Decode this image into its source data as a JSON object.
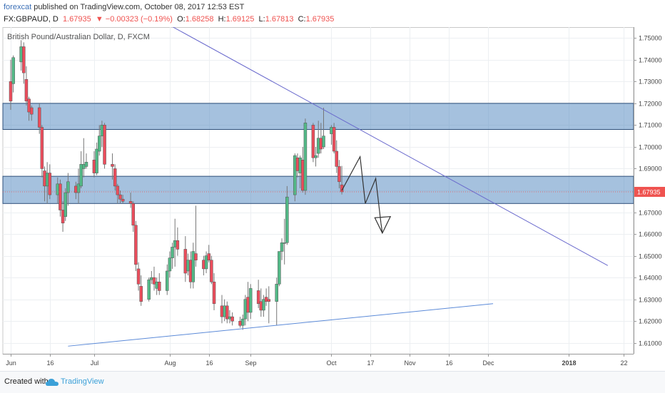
{
  "header": {
    "author": "forexcat",
    "published_text": " published on TradingView.com, October 08, 2017 12:53 EST",
    "symbol": "FX:GBPAUD, D",
    "last_price": "1.67935",
    "change_text": "−0.00323 (−0.19%)",
    "open_label": "O:",
    "open_value": "1.68258",
    "high_label": "H:",
    "high_value": "1.69125",
    "low_label": "L:",
    "low_value": "1.67813",
    "close_label": "C:",
    "close_value": "1.67935",
    "colors": {
      "up": "#26a69a",
      "down": "#ef5350",
      "value_text": "#ef5350"
    }
  },
  "footer": {
    "created_with": "Created with",
    "brand": "TradingView",
    "icon": "tradingview-cloud-icon"
  },
  "chart_data": {
    "type": "candlestick",
    "title": "British Pound/Australian Dollar, D, FXCM",
    "ylim": [
      1.605,
      1.755
    ],
    "y_ticks": [
      "1.75000",
      "1.74000",
      "1.73000",
      "1.72000",
      "1.71000",
      "1.70000",
      "1.69000",
      "1.68000",
      "1.67000",
      "1.66000",
      "1.65000",
      "1.64000",
      "1.63000",
      "1.62000",
      "1.61000"
    ],
    "x_ticks": [
      {
        "label": "Jun",
        "date": "2017-06-01"
      },
      {
        "label": "16",
        "date": "2017-06-16"
      },
      {
        "label": "Jul",
        "date": "2017-07-03"
      },
      {
        "label": "Aug",
        "date": "2017-08-01"
      },
      {
        "label": "16",
        "date": "2017-08-16"
      },
      {
        "label": "Sep",
        "date": "2017-09-01"
      },
      {
        "label": "Oct",
        "date": "2017-10-02"
      },
      {
        "label": "17",
        "date": "2017-10-17"
      },
      {
        "label": "Nov",
        "date": "2017-11-01"
      },
      {
        "label": "16",
        "date": "2017-11-16"
      },
      {
        "label": "Dec",
        "date": "2017-12-01"
      },
      {
        "label": "2018",
        "date": "2018-01-01"
      },
      {
        "label": "22",
        "date": "2018-01-22"
      }
    ],
    "last_price_label": "1.67935",
    "colors": {
      "up": "#53b987",
      "down": "#eb4d5c",
      "zone": "#5b8ec2",
      "trendline": "#6a6acd",
      "support": "#5b8ad8",
      "projection": "#333333"
    },
    "zones": [
      {
        "from": 1.708,
        "to": 1.72
      },
      {
        "from": 1.674,
        "to": 1.6865
      }
    ],
    "trendlines": [
      {
        "name": "resistance",
        "from": {
          "date": "2017-07-31",
          "y": 1.7565
        },
        "to": {
          "date": "2018-01-16",
          "y": 1.6455
        }
      },
      {
        "name": "support",
        "from": {
          "date": "2017-06-23",
          "y": 1.6085
        },
        "to": {
          "date": "2017-12-03",
          "y": 1.628
        }
      }
    ],
    "projection_path": [
      {
        "date": "2017-10-06",
        "y": 1.68
      },
      {
        "date": "2017-10-13",
        "y": 1.6955
      },
      {
        "date": "2017-10-15",
        "y": 1.674
      },
      {
        "date": "2017-10-19",
        "y": 1.6855
      },
      {
        "date": "2017-10-21",
        "y": 1.665
      }
    ],
    "candles": [
      {
        "date": "2017-06-01",
        "o": 1.73,
        "h": 1.74,
        "l": 1.717,
        "c": 1.721
      },
      {
        "date": "2017-06-02",
        "o": 1.729,
        "h": 1.742,
        "l": 1.725,
        "c": 1.741
      },
      {
        "date": "2017-06-05",
        "o": 1.739,
        "h": 1.749,
        "l": 1.735,
        "c": 1.746
      },
      {
        "date": "2017-06-06",
        "o": 1.746,
        "h": 1.748,
        "l": 1.729,
        "c": 1.734
      },
      {
        "date": "2017-06-07",
        "o": 1.731,
        "h": 1.737,
        "l": 1.719,
        "c": 1.721
      },
      {
        "date": "2017-06-08",
        "o": 1.722,
        "h": 1.723,
        "l": 1.712,
        "c": 1.716
      },
      {
        "date": "2017-06-09",
        "o": 1.718,
        "h": 1.719,
        "l": 1.712,
        "c": 1.715
      },
      {
        "date": "2017-06-12",
        "o": 1.718,
        "h": 1.72,
        "l": 1.706,
        "c": 1.709
      },
      {
        "date": "2017-06-13",
        "o": 1.709,
        "h": 1.71,
        "l": 1.686,
        "c": 1.69
      },
      {
        "date": "2017-06-14",
        "o": 1.689,
        "h": 1.691,
        "l": 1.675,
        "c": 1.682
      },
      {
        "date": "2017-06-15",
        "o": 1.682,
        "h": 1.693,
        "l": 1.674,
        "c": 1.688
      },
      {
        "date": "2017-06-16",
        "o": 1.688,
        "h": 1.692,
        "l": 1.676,
        "c": 1.678
      },
      {
        "date": "2017-06-19",
        "o": 1.678,
        "h": 1.686,
        "l": 1.674,
        "c": 1.683
      },
      {
        "date": "2017-06-20",
        "o": 1.683,
        "h": 1.685,
        "l": 1.668,
        "c": 1.671
      },
      {
        "date": "2017-06-21",
        "o": 1.671,
        "h": 1.675,
        "l": 1.661,
        "c": 1.665
      },
      {
        "date": "2017-06-22",
        "o": 1.668,
        "h": 1.681,
        "l": 1.666,
        "c": 1.679
      },
      {
        "date": "2017-06-23",
        "o": 1.679,
        "h": 1.688,
        "l": 1.673,
        "c": 1.684
      },
      {
        "date": "2017-06-26",
        "o": 1.682,
        "h": 1.684,
        "l": 1.676,
        "c": 1.679
      },
      {
        "date": "2017-06-27",
        "o": 1.679,
        "h": 1.69,
        "l": 1.674,
        "c": 1.683
      },
      {
        "date": "2017-06-28",
        "o": 1.682,
        "h": 1.698,
        "l": 1.681,
        "c": 1.692
      },
      {
        "date": "2017-06-29",
        "o": 1.69,
        "h": 1.704,
        "l": 1.686,
        "c": 1.692
      },
      {
        "date": "2017-06-30",
        "o": 1.691,
        "h": 1.697,
        "l": 1.69,
        "c": 1.693
      },
      {
        "date": "2017-07-03",
        "o": 1.694,
        "h": 1.698,
        "l": 1.686,
        "c": 1.688
      },
      {
        "date": "2017-07-04",
        "o": 1.688,
        "h": 1.702,
        "l": 1.687,
        "c": 1.699
      },
      {
        "date": "2017-07-05",
        "o": 1.698,
        "h": 1.71,
        "l": 1.696,
        "c": 1.705
      },
      {
        "date": "2017-07-06",
        "o": 1.705,
        "h": 1.712,
        "l": 1.7,
        "c": 1.71
      },
      {
        "date": "2017-07-07",
        "o": 1.71,
        "h": 1.711,
        "l": 1.69,
        "c": 1.692
      },
      {
        "date": "2017-07-10",
        "o": 1.692,
        "h": 1.697,
        "l": 1.685,
        "c": 1.691
      },
      {
        "date": "2017-07-11",
        "o": 1.69,
        "h": 1.692,
        "l": 1.68,
        "c": 1.682
      },
      {
        "date": "2017-07-12",
        "o": 1.682,
        "h": 1.683,
        "l": 1.674,
        "c": 1.678
      },
      {
        "date": "2017-07-13",
        "o": 1.678,
        "h": 1.68,
        "l": 1.674,
        "c": 1.676
      },
      {
        "date": "2017-07-14",
        "o": 1.676,
        "h": 1.678,
        "l": 1.674,
        "c": 1.675
      },
      {
        "date": "2017-07-17",
        "o": 1.675,
        "h": 1.679,
        "l": 1.672,
        "c": 1.674
      },
      {
        "date": "2017-07-18",
        "o": 1.674,
        "h": 1.675,
        "l": 1.661,
        "c": 1.664
      },
      {
        "date": "2017-07-19",
        "o": 1.664,
        "h": 1.666,
        "l": 1.643,
        "c": 1.646
      },
      {
        "date": "2017-07-20",
        "o": 1.644,
        "h": 1.647,
        "l": 1.634,
        "c": 1.637
      },
      {
        "date": "2017-07-21",
        "o": 1.636,
        "h": 1.641,
        "l": 1.627,
        "c": 1.629
      },
      {
        "date": "2017-07-24",
        "o": 1.63,
        "h": 1.64,
        "l": 1.629,
        "c": 1.639
      },
      {
        "date": "2017-07-25",
        "o": 1.639,
        "h": 1.643,
        "l": 1.637,
        "c": 1.64
      },
      {
        "date": "2017-07-26",
        "o": 1.64,
        "h": 1.645,
        "l": 1.634,
        "c": 1.637
      },
      {
        "date": "2017-07-27",
        "o": 1.635,
        "h": 1.64,
        "l": 1.632,
        "c": 1.638
      },
      {
        "date": "2017-07-28",
        "o": 1.638,
        "h": 1.642,
        "l": 1.632,
        "c": 1.634
      },
      {
        "date": "2017-07-31",
        "o": 1.634,
        "h": 1.646,
        "l": 1.632,
        "c": 1.643
      },
      {
        "date": "2017-08-01",
        "o": 1.643,
        "h": 1.652,
        "l": 1.64,
        "c": 1.649
      },
      {
        "date": "2017-08-02",
        "o": 1.649,
        "h": 1.656,
        "l": 1.644,
        "c": 1.654
      },
      {
        "date": "2017-08-03",
        "o": 1.654,
        "h": 1.667,
        "l": 1.645,
        "c": 1.657
      },
      {
        "date": "2017-08-04",
        "o": 1.657,
        "h": 1.663,
        "l": 1.65,
        "c": 1.653
      },
      {
        "date": "2017-08-07",
        "o": 1.653,
        "h": 1.659,
        "l": 1.638,
        "c": 1.642
      },
      {
        "date": "2017-08-08",
        "o": 1.643,
        "h": 1.651,
        "l": 1.641,
        "c": 1.648
      },
      {
        "date": "2017-08-09",
        "o": 1.648,
        "h": 1.652,
        "l": 1.635,
        "c": 1.638
      },
      {
        "date": "2017-08-10",
        "o": 1.638,
        "h": 1.656,
        "l": 1.635,
        "c": 1.652
      },
      {
        "date": "2017-08-11",
        "o": 1.651,
        "h": 1.673,
        "l": 1.645,
        "c": 1.648
      },
      {
        "date": "2017-08-14",
        "o": 1.648,
        "h": 1.65,
        "l": 1.641,
        "c": 1.644
      },
      {
        "date": "2017-08-15",
        "o": 1.644,
        "h": 1.652,
        "l": 1.642,
        "c": 1.65
      },
      {
        "date": "2017-08-16",
        "o": 1.651,
        "h": 1.655,
        "l": 1.647,
        "c": 1.648
      },
      {
        "date": "2017-08-17",
        "o": 1.648,
        "h": 1.65,
        "l": 1.637,
        "c": 1.638
      },
      {
        "date": "2017-08-18",
        "o": 1.638,
        "h": 1.642,
        "l": 1.625,
        "c": 1.628
      },
      {
        "date": "2017-08-21",
        "o": 1.627,
        "h": 1.632,
        "l": 1.619,
        "c": 1.622
      },
      {
        "date": "2017-08-22",
        "o": 1.622,
        "h": 1.63,
        "l": 1.62,
        "c": 1.627
      },
      {
        "date": "2017-08-23",
        "o": 1.627,
        "h": 1.629,
        "l": 1.619,
        "c": 1.621
      },
      {
        "date": "2017-08-24",
        "o": 1.621,
        "h": 1.625,
        "l": 1.619,
        "c": 1.622
      },
      {
        "date": "2017-08-25",
        "o": 1.622,
        "h": 1.624,
        "l": 1.618,
        "c": 1.62
      },
      {
        "date": "2017-08-28",
        "o": 1.62,
        "h": 1.622,
        "l": 1.617,
        "c": 1.618
      },
      {
        "date": "2017-08-29",
        "o": 1.618,
        "h": 1.623,
        "l": 1.616,
        "c": 1.621
      },
      {
        "date": "2017-08-30",
        "o": 1.621,
        "h": 1.632,
        "l": 1.618,
        "c": 1.63
      },
      {
        "date": "2017-08-31",
        "o": 1.631,
        "h": 1.638,
        "l": 1.62,
        "c": 1.624
      },
      {
        "date": "2017-09-01",
        "o": 1.624,
        "h": 1.637,
        "l": 1.621,
        "c": 1.635
      },
      {
        "date": "2017-09-04",
        "o": 1.634,
        "h": 1.639,
        "l": 1.626,
        "c": 1.628
      },
      {
        "date": "2017-09-05",
        "o": 1.629,
        "h": 1.635,
        "l": 1.622,
        "c": 1.625
      },
      {
        "date": "2017-09-06",
        "o": 1.625,
        "h": 1.632,
        "l": 1.622,
        "c": 1.63
      },
      {
        "date": "2017-09-07",
        "o": 1.631,
        "h": 1.635,
        "l": 1.627,
        "c": 1.629
      },
      {
        "date": "2017-09-08",
        "o": 1.63,
        "h": 1.636,
        "l": 1.619,
        "c": 1.629
      },
      {
        "date": "2017-09-11",
        "o": 1.629,
        "h": 1.64,
        "l": 1.618,
        "c": 1.637
      },
      {
        "date": "2017-09-12",
        "o": 1.637,
        "h": 1.652,
        "l": 1.636,
        "c": 1.652
      },
      {
        "date": "2017-09-13",
        "o": 1.652,
        "h": 1.658,
        "l": 1.648,
        "c": 1.656
      },
      {
        "date": "2017-09-14",
        "o": 1.656,
        "h": 1.667,
        "l": 1.646,
        "c": 1.656
      },
      {
        "date": "2017-09-15",
        "o": 1.656,
        "h": 1.682,
        "l": 1.655,
        "c": 1.677
      },
      {
        "date": "2017-09-18",
        "o": 1.678,
        "h": 1.697,
        "l": 1.675,
        "c": 1.696
      },
      {
        "date": "2017-09-19",
        "o": 1.695,
        "h": 1.697,
        "l": 1.686,
        "c": 1.689
      },
      {
        "date": "2017-09-20",
        "o": 1.688,
        "h": 1.696,
        "l": 1.681,
        "c": 1.695
      },
      {
        "date": "2017-09-21",
        "o": 1.694,
        "h": 1.7,
        "l": 1.679,
        "c": 1.68
      },
      {
        "date": "2017-09-22",
        "o": 1.68,
        "h": 1.713,
        "l": 1.678,
        "c": 1.711
      },
      {
        "date": "2017-09-25",
        "o": 1.71,
        "h": 1.711,
        "l": 1.693,
        "c": 1.695
      },
      {
        "date": "2017-09-26",
        "o": 1.695,
        "h": 1.7,
        "l": 1.691,
        "c": 1.696
      },
      {
        "date": "2017-09-27",
        "o": 1.697,
        "h": 1.712,
        "l": 1.695,
        "c": 1.704
      },
      {
        "date": "2017-09-28",
        "o": 1.704,
        "h": 1.711,
        "l": 1.697,
        "c": 1.699
      },
      {
        "date": "2017-09-29",
        "o": 1.7,
        "h": 1.718,
        "l": 1.699,
        "c": 1.705
      },
      {
        "date": "2017-10-02",
        "o": 1.706,
        "h": 1.71,
        "l": 1.701,
        "c": 1.709
      },
      {
        "date": "2017-10-03",
        "o": 1.709,
        "h": 1.711,
        "l": 1.697,
        "c": 1.698
      },
      {
        "date": "2017-10-04",
        "o": 1.698,
        "h": 1.703,
        "l": 1.688,
        "c": 1.691
      },
      {
        "date": "2017-10-05",
        "o": 1.691,
        "h": 1.694,
        "l": 1.681,
        "c": 1.684
      },
      {
        "date": "2017-10-06",
        "o": 1.68258,
        "h": 1.69125,
        "l": 1.67813,
        "c": 1.67935
      }
    ]
  }
}
